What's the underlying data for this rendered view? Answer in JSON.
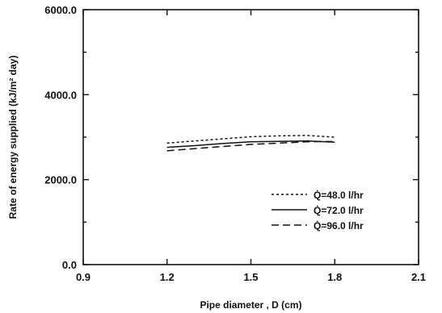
{
  "chart_data": {
    "type": "line",
    "title": "",
    "xlabel": "Pipe diameter , D (cm)",
    "ylabel": "Rate of energy supplied (kJ/m² day)",
    "xlim": [
      0.9,
      2.1
    ],
    "ylim": [
      0.0,
      6000.0
    ],
    "x_ticks": [
      0.9,
      1.2,
      1.5,
      1.8,
      2.1
    ],
    "y_ticks": [
      0.0,
      2000.0,
      4000.0,
      6000.0
    ],
    "x_tick_labels": [
      "0.9",
      "1.2",
      "1.5",
      "1.8",
      "2.1"
    ],
    "y_tick_labels": [
      "0.0",
      "2000.0",
      "4000.0",
      "6000.0"
    ],
    "grid": false,
    "legend_position": "lower-right",
    "series": [
      {
        "name": "Q̇=48.0  l/hr",
        "style": "dotted",
        "x": [
          1.2,
          1.3,
          1.4,
          1.5,
          1.6,
          1.7,
          1.8
        ],
        "y": [
          2860,
          2910,
          2960,
          3010,
          3030,
          3040,
          3000
        ]
      },
      {
        "name": "Q̇=72.0  l/hr",
        "style": "solid",
        "x": [
          1.2,
          1.3,
          1.4,
          1.5,
          1.6,
          1.7,
          1.8
        ],
        "y": [
          2760,
          2800,
          2850,
          2890,
          2900,
          2910,
          2880
        ]
      },
      {
        "name": "Q̇=96.0  l/hr",
        "style": "dashed",
        "x": [
          1.2,
          1.3,
          1.4,
          1.5,
          1.6,
          1.7,
          1.8
        ],
        "y": [
          2680,
          2730,
          2780,
          2830,
          2860,
          2890,
          2900
        ]
      }
    ]
  }
}
